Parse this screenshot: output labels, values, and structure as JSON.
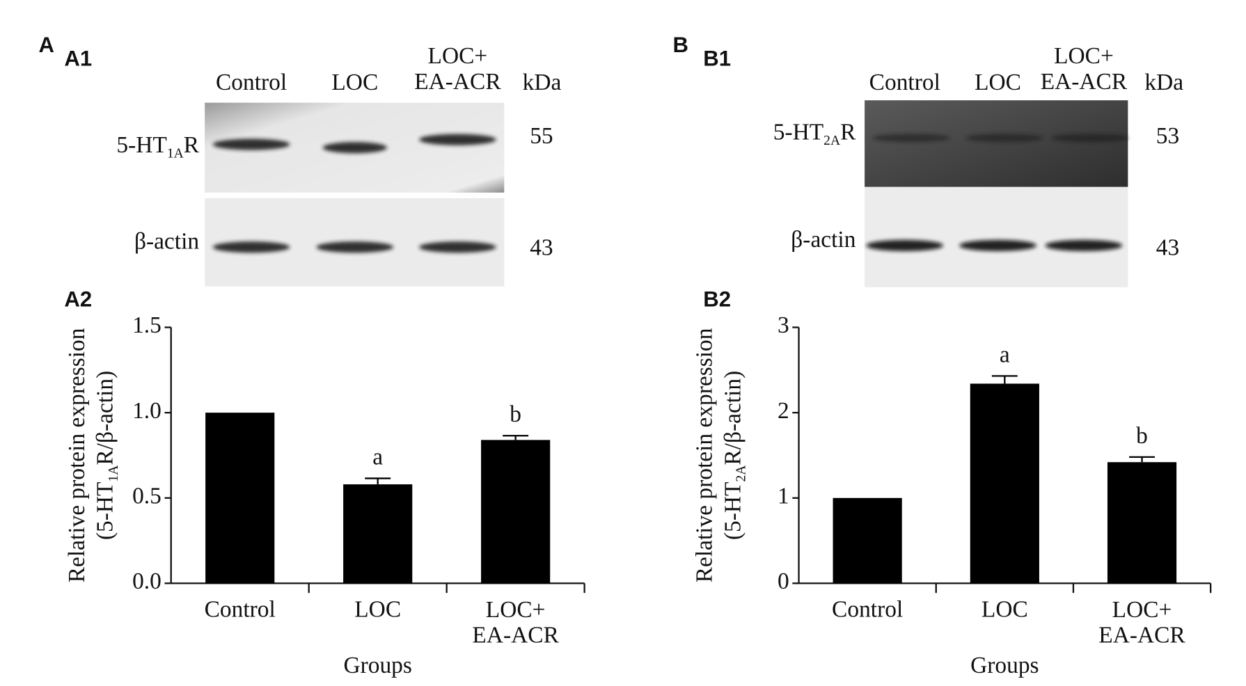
{
  "chart_data": [
    {
      "type": "bar",
      "panel": "A",
      "blot_title": "A1",
      "chart_title": "A2",
      "lanes": [
        "Control",
        "LOC",
        "LOC+\nEA-ACR"
      ],
      "unit": "kDa",
      "blots": [
        {
          "label": {
            "text": "5-HT",
            "sub": "1A",
            "end": "R"
          },
          "kda": 55
        },
        {
          "label": {
            "text": "β-actin"
          },
          "kda": 43
        }
      ],
      "ylabel": {
        "line1": "Relative protein expression",
        "line2": {
          "text": "(5-HT",
          "sub": "1A",
          "end": "R/β-actin)"
        }
      },
      "xlabel": "Groups",
      "categories": [
        "Control",
        "LOC",
        "LOC+\nEA-ACR"
      ],
      "values": [
        1.0,
        0.58,
        0.84
      ],
      "errors": [
        0,
        0.035,
        0.025
      ],
      "annotations": [
        null,
        "a",
        "b"
      ],
      "color": "#000000",
      "ylim": [
        0,
        1.5
      ],
      "yticks": [
        {
          "value": 0,
          "label": "0.0"
        },
        0.5,
        {
          "value": 1,
          "label": "1.0"
        },
        1.5
      ]
    },
    {
      "type": "bar",
      "panel": "B",
      "blot_title": "B1",
      "chart_title": "B2",
      "lanes": [
        "Control",
        "LOC",
        "LOC+\nEA-ACR"
      ],
      "unit": "kDa",
      "blots": [
        {
          "label": {
            "text": "5-HT",
            "sub": "2A",
            "end": "R"
          },
          "kda": 53
        },
        {
          "label": {
            "text": "β-actin"
          },
          "kda": 43
        }
      ],
      "ylabel": {
        "line1": "Relative protein expression",
        "line2": {
          "text": "(5-HT",
          "sub": "2A",
          "end": "R/β-actin)"
        }
      },
      "xlabel": "Groups",
      "categories": [
        "Control",
        "LOC",
        "LOC+\nEA-ACR"
      ],
      "values": [
        1.0,
        2.34,
        1.42
      ],
      "errors": [
        0,
        0.09,
        0.06
      ],
      "annotations": [
        null,
        "a",
        "b"
      ],
      "color": "#000000",
      "ylim": [
        0,
        3
      ],
      "yticks": [
        0,
        1,
        2,
        3
      ]
    }
  ]
}
